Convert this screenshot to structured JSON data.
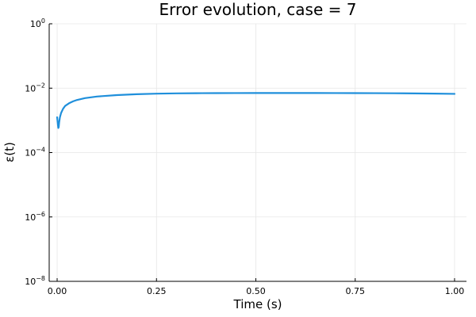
{
  "chart_data": {
    "type": "line",
    "title": "Error evolution, case = 7",
    "xlabel": "Time (s)",
    "ylabel": "ε(t)",
    "xlim": [
      -0.02,
      1.03
    ],
    "ylim": [
      1e-08,
      1
    ],
    "yscale": "log",
    "grid": true,
    "legend": "none",
    "x_ticks": [
      0,
      0.25,
      0.5,
      0.75,
      1.0
    ],
    "x_tick_labels": [
      "0.00",
      "0.25",
      "0.50",
      "0.75",
      "1.00"
    ],
    "y_ticks": [
      1e-08,
      1e-06,
      0.0001,
      0.01,
      1
    ],
    "y_tick_labels": [
      {
        "base": "10",
        "exp": "−8"
      },
      {
        "base": "10",
        "exp": "−6"
      },
      {
        "base": "10",
        "exp": "−4"
      },
      {
        "base": "10",
        "exp": "−2"
      },
      {
        "base": "10",
        "exp": "0"
      }
    ],
    "series": [
      {
        "color": "#1f8fdb",
        "x": [
          0.0,
          0.001,
          0.002,
          0.003,
          0.004,
          0.005,
          0.007,
          0.01,
          0.015,
          0.02,
          0.03,
          0.04,
          0.05,
          0.07,
          0.1,
          0.15,
          0.2,
          0.25,
          0.3,
          0.35,
          0.4,
          0.45,
          0.5,
          0.55,
          0.6,
          0.65,
          0.7,
          0.75,
          0.8,
          0.85,
          0.9,
          0.95,
          1.0
        ],
        "y": [
          0.00125,
          0.00095,
          0.00072,
          0.00058,
          0.00062,
          0.00085,
          0.00125,
          0.0017,
          0.0023,
          0.0028,
          0.0034,
          0.0039,
          0.0043,
          0.0049,
          0.0055,
          0.0061,
          0.0065,
          0.00675,
          0.0069,
          0.00698,
          0.00702,
          0.00705,
          0.00706,
          0.00707,
          0.00707,
          0.00706,
          0.00704,
          0.00702,
          0.00699,
          0.00694,
          0.00687,
          0.00678,
          0.00665
        ]
      }
    ]
  }
}
